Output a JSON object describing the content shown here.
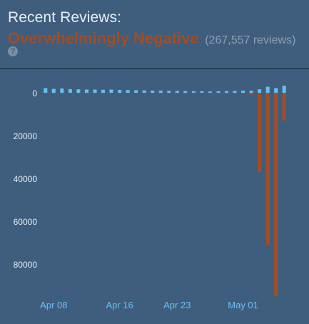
{
  "header": {
    "title": "Recent Reviews:",
    "verdict": "Overwhelmingly Negative",
    "review_count": "(267,557 reviews)",
    "help_glyph": "?"
  },
  "colors": {
    "background": "#3f5e7d",
    "positive": "#66c0f4",
    "negative": "#a34c25",
    "verdict": "#a34c25",
    "tick_label_x": "#66c0f4",
    "tick_label_y": "#e6eef6"
  },
  "chart_data": {
    "type": "bar",
    "title": "",
    "xlabel": "",
    "ylabel": "",
    "x_tick_labels": [
      "Apr 08",
      "Apr 16",
      "Apr 23",
      "May 01"
    ],
    "x_tick_dates": [
      "2024-04-08",
      "2024-04-16",
      "2024-04-23",
      "2024-05-01"
    ],
    "y_tick_labels": [
      "0",
      "20000",
      "40000",
      "60000",
      "80000"
    ],
    "ylim": [
      -95000,
      2500
    ],
    "grid": false,
    "legend": "none",
    "categories": [
      "2024-04-07",
      "2024-04-08",
      "2024-04-09",
      "2024-04-10",
      "2024-04-11",
      "2024-04-12",
      "2024-04-13",
      "2024-04-14",
      "2024-04-15",
      "2024-04-16",
      "2024-04-17",
      "2024-04-18",
      "2024-04-19",
      "2024-04-20",
      "2024-04-21",
      "2024-04-22",
      "2024-04-23",
      "2024-04-24",
      "2024-04-25",
      "2024-04-26",
      "2024-04-27",
      "2024-04-28",
      "2024-04-29",
      "2024-04-30",
      "2024-05-01",
      "2024-05-02",
      "2024-05-03",
      "2024-05-04",
      "2024-05-05",
      "2024-05-06"
    ],
    "series": [
      {
        "values": [
          2200,
          1800,
          2000,
          1700,
          1600,
          1500,
          1500,
          1400,
          1500,
          1300,
          1300,
          1200,
          1100,
          1000,
          1000,
          900,
          900,
          800,
          700,
          700,
          600,
          700,
          800,
          900,
          1000,
          1000,
          1600,
          2800,
          2200,
          3300
        ]
      },
      {
        "values": [
          -200,
          -150,
          -150,
          -120,
          -120,
          -100,
          -100,
          -100,
          -100,
          -100,
          -100,
          -100,
          -100,
          -100,
          -100,
          -100,
          -100,
          -100,
          -100,
          -100,
          -200,
          -300,
          -500,
          -400,
          -300,
          -1000,
          -37000,
          -71000,
          -95000,
          -13000
        ]
      }
    ]
  }
}
